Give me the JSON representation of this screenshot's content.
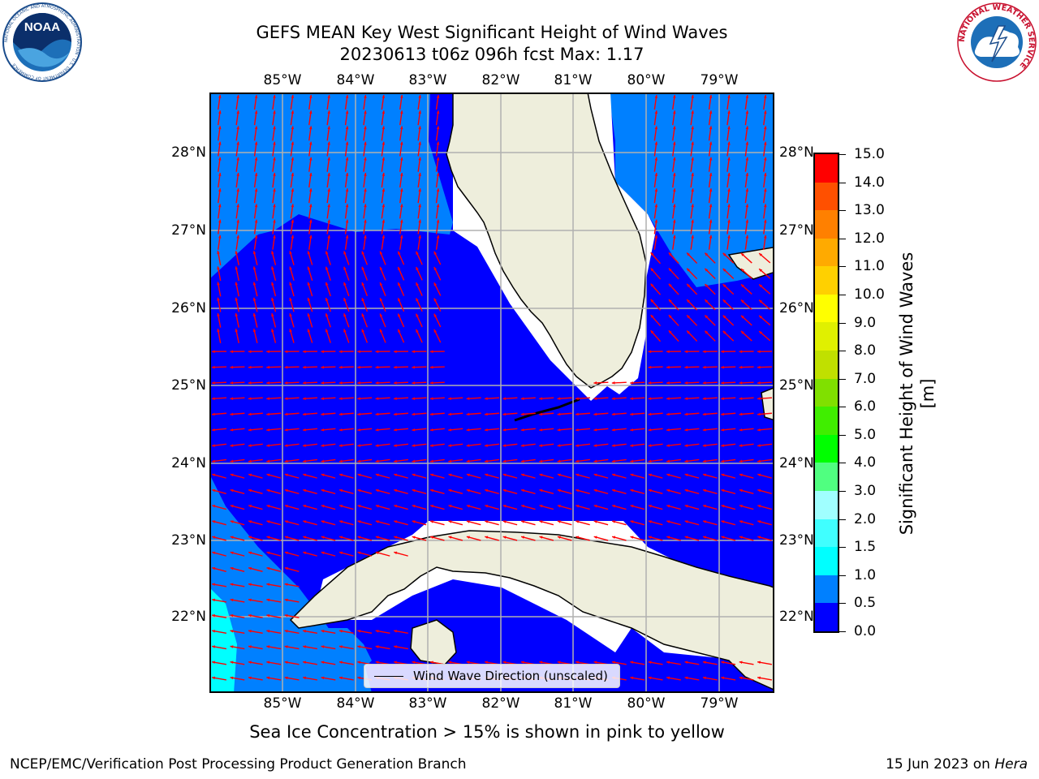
{
  "header": {
    "title_line1": "GEFS MEAN Key West Significant Height of Wind Waves",
    "title_line2": "20230613 t06z 096h fcst   Max: 1.17"
  },
  "map": {
    "lon_labels": [
      "85°W",
      "84°W",
      "83°W",
      "82°W",
      "81°W",
      "80°W",
      "79°W"
    ],
    "lat_labels": [
      "28°N",
      "27°N",
      "26°N",
      "25°N",
      "24°N",
      "23°N",
      "22°N"
    ],
    "lon_range": [
      -86.0,
      -78.25
    ],
    "lat_range": [
      21.05,
      28.75
    ],
    "land_color": "#eeeedc",
    "coast_color": "#000000",
    "grid_color": "#b0b0b0",
    "arrow_color": "#ff0000",
    "wave_fill_colors": {
      "0.0-0.5": "#0000ff",
      "0.5-1.0": "#0080ff",
      "1.0-1.5": "#00ffff"
    },
    "legend_label": "Wind Wave Direction (unscaled)"
  },
  "colorbar": {
    "title": "Significant Height of Wind Waves [m]",
    "tick_labels": [
      "0.0",
      "0.5",
      "1.0",
      "1.5",
      "2.0",
      "3.0",
      "4.0",
      "5.0",
      "6.0",
      "7.0",
      "8.0",
      "9.0",
      "10.0",
      "11.0",
      "12.0",
      "13.0",
      "14.0",
      "15.0"
    ],
    "colors": [
      "#0000ff",
      "#0080ff",
      "#00ffff",
      "#40ffff",
      "#a0ffff",
      "#50ff80",
      "#00ff00",
      "#40ee00",
      "#80e000",
      "#c0e000",
      "#e0f000",
      "#ffff00",
      "#ffd000",
      "#ffaa00",
      "#ff8000",
      "#ff5000",
      "#ff0000"
    ]
  },
  "footer": {
    "ice_note": "Sea Ice Concentration > 15% is shown in pink to yellow",
    "left": "NCEP/EMC/Verification Post Processing Product Generation Branch",
    "right_date": "15 Jun 2023 on",
    "right_host": "Hera"
  },
  "logos": {
    "noaa_text": "NOAA",
    "noaa_ring_text": "NATIONAL OCEANIC AND ATMOSPHERIC ADMINISTRATION · U.S. DEPARTMENT OF COMMERCE",
    "nws_ring_text": "NATIONAL WEATHER SERVICE"
  }
}
